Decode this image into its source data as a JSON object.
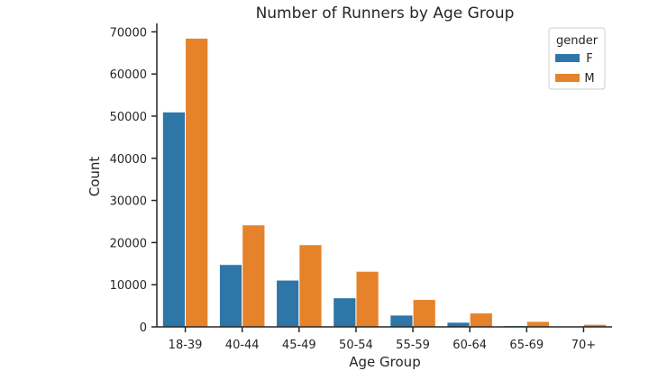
{
  "chart_data": {
    "type": "bar",
    "title": "Number of Runners by Age Group",
    "xlabel": "Age Group",
    "ylabel": "Count",
    "ylim": [
      0,
      72000
    ],
    "yticks": [
      0,
      10000,
      20000,
      30000,
      40000,
      50000,
      60000,
      70000
    ],
    "categories": [
      "18-39",
      "40-44",
      "45-49",
      "50-54",
      "55-59",
      "60-64",
      "65-69",
      "70+"
    ],
    "series": [
      {
        "name": "F",
        "color": "#2e75a8",
        "values": [
          51000,
          14800,
          11100,
          6900,
          2800,
          1100,
          300,
          100
        ]
      },
      {
        "name": "M",
        "color": "#e6832a",
        "values": [
          68500,
          24200,
          19500,
          13200,
          6500,
          3300,
          1300,
          600
        ]
      }
    ],
    "legend": {
      "title": "gender",
      "placement": "top-right"
    },
    "grid": false
  }
}
